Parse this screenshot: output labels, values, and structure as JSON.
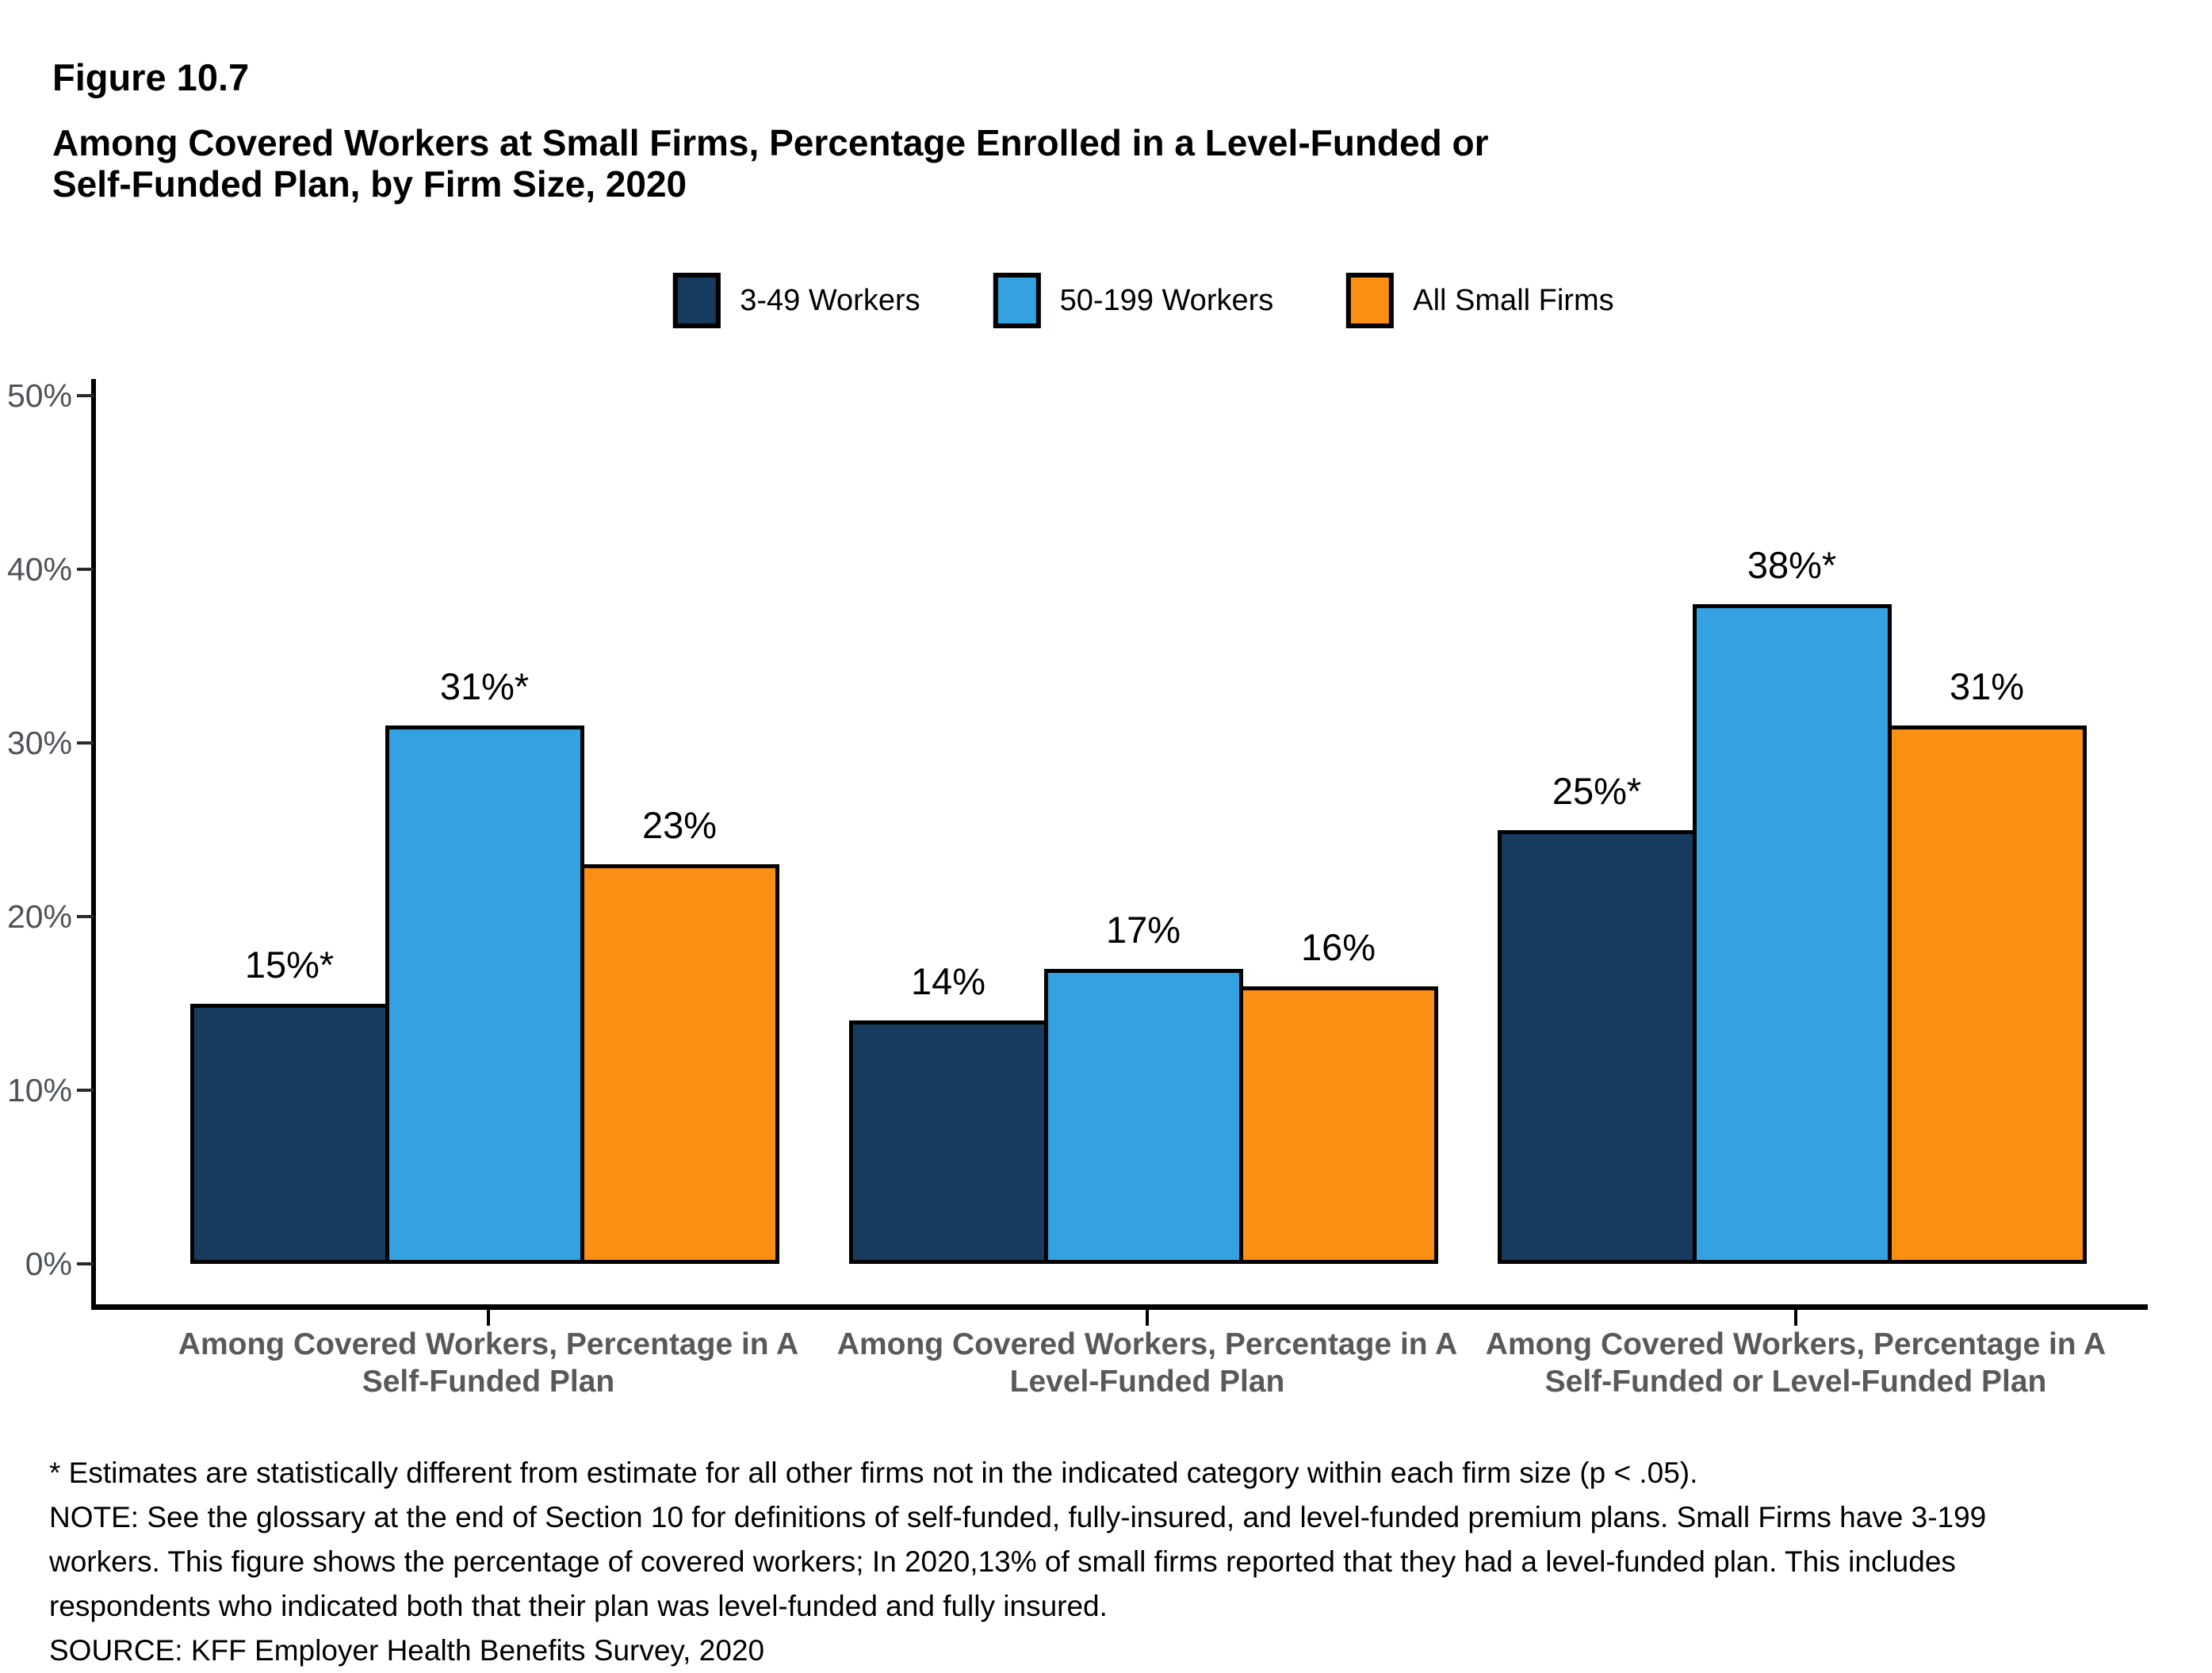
{
  "figure": {
    "label": "Figure 10.7",
    "title_line1": "Among Covered Workers at Small Firms, Percentage Enrolled in a Level-Funded or",
    "title_line2": "Self-Funded Plan, by Firm Size, 2020"
  },
  "legend": {
    "items": [
      {
        "label": "3-49 Workers",
        "color": "#173A5F"
      },
      {
        "label": "50-199 Workers",
        "color": "#34A1E1"
      },
      {
        "label": "All Small Firms",
        "color": "#FB8F14"
      }
    ]
  },
  "chart_data": {
    "type": "bar",
    "title": "Among Covered Workers at Small Firms, Percentage Enrolled in a Level-Funded or Self-Funded Plan, by Firm Size, 2020",
    "categories": [
      "Among Covered Workers, Percentage in A Self-Funded Plan",
      "Among Covered Workers, Percentage in A Level-Funded Plan",
      "Among Covered Workers, Percentage in A Self-Funded or Level-Funded Plan"
    ],
    "category_lines": [
      [
        "Among Covered Workers, Percentage in A",
        "Self-Funded Plan"
      ],
      [
        "Among Covered Workers, Percentage in A",
        "Level-Funded Plan"
      ],
      [
        "Among Covered Workers, Percentage in A",
        "Self-Funded or Level-Funded Plan"
      ]
    ],
    "series": [
      {
        "name": "3-49 Workers",
        "color": "#173A5F",
        "values": [
          15,
          14,
          25
        ],
        "labels": [
          "15%*",
          "14%",
          "25%*"
        ]
      },
      {
        "name": "50-199 Workers",
        "color": "#34A1E1",
        "values": [
          31,
          17,
          38
        ],
        "labels": [
          "31%*",
          "17%",
          "38%*"
        ]
      },
      {
        "name": "All Small Firms",
        "color": "#FB8F14",
        "values": [
          23,
          16,
          31
        ],
        "labels": [
          "23%",
          "16%",
          "31%"
        ]
      }
    ],
    "ylim": [
      0,
      50
    ],
    "yticks": [
      {
        "value": 0,
        "label": "0%"
      },
      {
        "value": 10,
        "label": "10%"
      },
      {
        "value": 20,
        "label": "20%"
      },
      {
        "value": 30,
        "label": "30%"
      },
      {
        "value": 40,
        "label": "40%"
      },
      {
        "value": 50,
        "label": "50%"
      }
    ],
    "grid": false,
    "legend_position": "top"
  },
  "notes": {
    "lines": [
      "* Estimates are statistically different from estimate for all other firms not in the indicated category within each firm size (p < .05).",
      "NOTE: See the glossary at the end of Section 10 for definitions of self-funded, fully-insured, and level-funded premium plans. Small Firms have 3-199",
      "workers. This figure shows the percentage of covered workers; In 2020,13% of small firms reported that they had a level-funded plan. This includes",
      "respondents who indicated both that their plan was level-funded and fully insured.",
      "SOURCE: KFF Employer Health Benefits Survey, 2020"
    ]
  }
}
